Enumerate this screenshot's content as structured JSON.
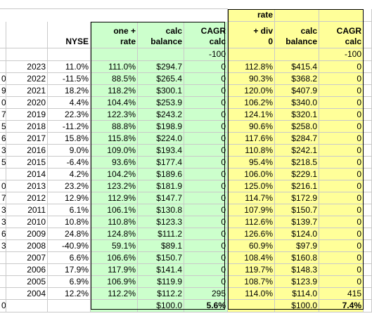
{
  "headers": {
    "nyse": "NYSE",
    "one_plus_rate": [
      "one +",
      "rate"
    ],
    "calc_balance_1": [
      "calc",
      "balance"
    ],
    "cagr_calc_1": [
      "CAGR",
      "calc"
    ],
    "rate_div": [
      "rate",
      "+ div",
      "0"
    ],
    "calc_balance_2": [
      "calc",
      "balance"
    ],
    "cagr_calc_2": [
      "CAGR",
      "calc"
    ]
  },
  "param_row": {
    "cagr1": "-100",
    "cagr2": "-100"
  },
  "rows": [
    {
      "frag": "",
      "year": "2023",
      "nyse": "11.0%",
      "r1": "111.0%",
      "b1": "$294.7",
      "c1": "0",
      "r2": "112.8%",
      "b2": "$415.4",
      "c2": "0"
    },
    {
      "frag": "0",
      "year": "2022",
      "nyse": "-11.5%",
      "r1": "88.5%",
      "b1": "$265.4",
      "c1": "0",
      "r2": "90.3%",
      "b2": "$368.2",
      "c2": "0"
    },
    {
      "frag": "9",
      "year": "2021",
      "nyse": "18.2%",
      "r1": "118.2%",
      "b1": "$300.1",
      "c1": "0",
      "r2": "120.0%",
      "b2": "$407.9",
      "c2": "0"
    },
    {
      "frag": "0",
      "year": "2020",
      "nyse": "4.4%",
      "r1": "104.4%",
      "b1": "$253.9",
      "c1": "0",
      "r2": "106.2%",
      "b2": "$340.0",
      "c2": "0"
    },
    {
      "frag": "7",
      "year": "2019",
      "nyse": "22.3%",
      "r1": "122.3%",
      "b1": "$243.2",
      "c1": "0",
      "r2": "124.1%",
      "b2": "$320.1",
      "c2": "0"
    },
    {
      "frag": "5",
      "year": "2018",
      "nyse": "-11.2%",
      "r1": "88.8%",
      "b1": "$198.9",
      "c1": "0",
      "r2": "90.6%",
      "b2": "$258.0",
      "c2": "0"
    },
    {
      "frag": "6",
      "year": "2017",
      "nyse": "15.8%",
      "r1": "115.8%",
      "b1": "$224.0",
      "c1": "0",
      "r2": "117.6%",
      "b2": "$284.7",
      "c2": "0"
    },
    {
      "frag": "3",
      "year": "2016",
      "nyse": "9.0%",
      "r1": "109.0%",
      "b1": "$193.4",
      "c1": "0",
      "r2": "110.8%",
      "b2": "$242.1",
      "c2": "0"
    },
    {
      "frag": "5",
      "year": "2015",
      "nyse": "-6.4%",
      "r1": "93.6%",
      "b1": "$177.4",
      "c1": "0",
      "r2": "95.4%",
      "b2": "$218.5",
      "c2": "0"
    },
    {
      "frag": "",
      "year": "2014",
      "nyse": "4.2%",
      "r1": "104.2%",
      "b1": "$189.6",
      "c1": "0",
      "r2": "106.0%",
      "b2": "$229.1",
      "c2": "0"
    },
    {
      "frag": "0",
      "year": "2013",
      "nyse": "23.2%",
      "r1": "123.2%",
      "b1": "$181.9",
      "c1": "0",
      "r2": "125.0%",
      "b2": "$216.1",
      "c2": "0"
    },
    {
      "frag": "7",
      "year": "2012",
      "nyse": "12.9%",
      "r1": "112.9%",
      "b1": "$147.7",
      "c1": "0",
      "r2": "114.7%",
      "b2": "$172.9",
      "c2": "0"
    },
    {
      "frag": "3",
      "year": "2011",
      "nyse": "6.1%",
      "r1": "106.1%",
      "b1": "$130.8",
      "c1": "0",
      "r2": "107.9%",
      "b2": "$150.7",
      "c2": "0"
    },
    {
      "frag": "3",
      "year": "2010",
      "nyse": "10.8%",
      "r1": "110.8%",
      "b1": "$123.3",
      "c1": "0",
      "r2": "112.6%",
      "b2": "$139.7",
      "c2": "0"
    },
    {
      "frag": "6",
      "year": "2009",
      "nyse": "24.8%",
      "r1": "124.8%",
      "b1": "$111.2",
      "c1": "0",
      "r2": "126.6%",
      "b2": "$124.0",
      "c2": "0"
    },
    {
      "frag": "3",
      "year": "2008",
      "nyse": "-40.9%",
      "r1": "59.1%",
      "b1": "$89.1",
      "c1": "0",
      "r2": "60.9%",
      "b2": "$97.9",
      "c2": "0"
    },
    {
      "frag": "",
      "year": "2007",
      "nyse": "6.6%",
      "r1": "106.6%",
      "b1": "$150.7",
      "c1": "0",
      "r2": "108.4%",
      "b2": "$160.8",
      "c2": "0"
    },
    {
      "frag": "",
      "year": "2006",
      "nyse": "17.9%",
      "r1": "117.9%",
      "b1": "$141.4",
      "c1": "0",
      "r2": "119.7%",
      "b2": "$148.3",
      "c2": "0"
    },
    {
      "frag": "",
      "year": "2005",
      "nyse": "6.9%",
      "r1": "106.9%",
      "b1": "$119.9",
      "c1": "0",
      "r2": "108.7%",
      "b2": "$123.9",
      "c2": "0"
    },
    {
      "frag": "",
      "year": "2004",
      "nyse": "12.2%",
      "r1": "112.2%",
      "b1": "$112.2",
      "c1": "295",
      "r2": "114.0%",
      "b2": "$114.0",
      "c2": "415"
    }
  ],
  "final_row": {
    "frag": "0",
    "b1": "$100.0",
    "c1": "5.6%",
    "b2": "$100.0",
    "c2": "7.4%"
  },
  "colors": {
    "green_fill": "#ccffcc",
    "yellow_fill": "#ffff99",
    "gridline": "#c9c9c9",
    "border": "#000000"
  }
}
